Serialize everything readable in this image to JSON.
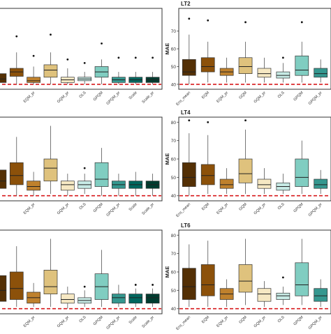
{
  "colors": {
    "Ens_mean": "#543005",
    "EQM": "#8c510a",
    "EQM_pr": "#bf812d",
    "GQM": "#dfc27d",
    "GQM_pr": "#f6e8c3",
    "OLS": "#c7eae5",
    "GPQM": "#80cdc1",
    "GPQM_pr": "#35978f",
    "Scale": "#01665e",
    "Scale_pr": "#003c30",
    "reference_line": "#d7191c",
    "panel_border": "#333333",
    "whisker": "#555555"
  },
  "chart_data": [
    {
      "type": "box",
      "title": "",
      "ylabel": "",
      "ylim": [
        38,
        82
      ],
      "y_ticks": [],
      "reference_line": 40,
      "categories": [
        "Ens_mean",
        "EQM",
        "EQM_pr",
        "GQM",
        "GQM_pr",
        "OLS",
        "GPQM",
        "GPQM_pr",
        "Scale",
        "Scale_pr"
      ],
      "tick_labels": [
        "",
        "",
        "EQM_pr",
        "",
        "GQM_pr",
        "OLS",
        "GPQM",
        "GPQM_pr",
        "Scale",
        "Scale_pr"
      ],
      "boxes": [
        {
          "category": "Ens_mean",
          "min": 40,
          "q1": 41,
          "median": 43,
          "q3": 46,
          "max": 52,
          "outliers": []
        },
        {
          "category": "EQM",
          "min": 40,
          "q1": 44.5,
          "median": 47,
          "q3": 49,
          "max": 58,
          "outliers": [
            67
          ]
        },
        {
          "category": "EQM_pr",
          "min": 40,
          "q1": 41,
          "median": 42,
          "q3": 44,
          "max": 50,
          "outliers": [
            56
          ]
        },
        {
          "category": "GQM",
          "min": 40,
          "q1": 44,
          "median": 48,
          "q3": 51,
          "max": 58,
          "outliers": [
            68
          ]
        },
        {
          "category": "GQM_pr",
          "min": 40,
          "q1": 41,
          "median": 42.5,
          "q3": 44,
          "max": 49,
          "outliers": [
            54
          ]
        },
        {
          "category": "OLS",
          "min": 40,
          "q1": 42,
          "median": 43,
          "q3": 44,
          "max": 47,
          "outliers": [
            52
          ]
        },
        {
          "category": "GPQM",
          "min": 40,
          "q1": 44,
          "median": 47,
          "q3": 50,
          "max": 54,
          "outliers": [
            63
          ]
        },
        {
          "category": "GPQM_pr",
          "min": 40,
          "q1": 41,
          "median": 42.5,
          "q3": 44,
          "max": 47,
          "outliers": [
            55
          ]
        },
        {
          "category": "Scale",
          "min": 40,
          "q1": 41,
          "median": 42.5,
          "q3": 44,
          "max": 47,
          "outliers": [
            55
          ]
        },
        {
          "category": "Scale_pr",
          "min": 40,
          "q1": 41,
          "median": 42.5,
          "q3": 44,
          "max": 47,
          "outliers": [
            55
          ]
        }
      ]
    },
    {
      "type": "box",
      "title": "LT2",
      "ylabel": "MAE",
      "ylim": [
        38,
        82
      ],
      "y_ticks": [
        40,
        50,
        60,
        70
      ],
      "reference_line": 40,
      "categories": [
        "Ens_mean",
        "EQM",
        "EQM_pr",
        "GQM",
        "GQM_pr",
        "OLS",
        "GPQM",
        "GPQM_pr"
      ],
      "tick_labels": [
        "Ens_mean",
        "EQM",
        "EQM_pr",
        "GQM",
        "GQM_pr",
        "OLS",
        "GPQM",
        "GPQM_pr"
      ],
      "boxes": [
        {
          "category": "Ens_mean",
          "min": 40,
          "q1": 45,
          "median": 47,
          "q3": 54,
          "max": 68,
          "outliers": [
            77
          ]
        },
        {
          "category": "EQM",
          "min": 41,
          "q1": 47,
          "median": 50,
          "q3": 55,
          "max": 64,
          "outliers": [
            76
          ]
        },
        {
          "category": "EQM_pr",
          "min": 41,
          "q1": 45,
          "median": 47,
          "q3": 49,
          "max": 55,
          "outliers": []
        },
        {
          "category": "GQM",
          "min": 41,
          "q1": 46,
          "median": 50,
          "q3": 55,
          "max": 64,
          "outliers": [
            75
          ]
        },
        {
          "category": "GQM_pr",
          "min": 41,
          "q1": 44,
          "median": 46,
          "q3": 49,
          "max": 55,
          "outliers": []
        },
        {
          "category": "OLS",
          "min": 41,
          "q1": 43.5,
          "median": 45,
          "q3": 47,
          "max": 52,
          "outliers": [
            55
          ]
        },
        {
          "category": "GPQM",
          "min": 41,
          "q1": 45,
          "median": 48,
          "q3": 56,
          "max": 64,
          "outliers": [
            75
          ]
        },
        {
          "category": "GPQM_pr",
          "min": 41,
          "q1": 44,
          "median": 46,
          "q3": 49,
          "max": 54,
          "outliers": []
        }
      ]
    },
    {
      "type": "box",
      "title": "",
      "ylabel": "",
      "ylim": [
        38,
        82
      ],
      "y_ticks": [],
      "reference_line": 40,
      "categories": [
        "Ens_mean",
        "EQM",
        "EQM_pr",
        "GQM",
        "GQM_pr",
        "OLS",
        "GPQM",
        "GPQM_pr",
        "Scale",
        "Scale_pr"
      ],
      "tick_labels": [
        "",
        "",
        "EQM_pr",
        "",
        "GQM_pr",
        "OLS",
        "GPQM",
        "GPQM_pr",
        "Scale",
        "Scale_pr"
      ],
      "boxes": [
        {
          "category": "Ens_mean",
          "min": 40,
          "q1": 44,
          "median": 48,
          "q3": 54,
          "max": 70,
          "outliers": []
        },
        {
          "category": "EQM",
          "min": 40,
          "q1": 46,
          "median": 51,
          "q3": 58,
          "max": 72,
          "outliers": []
        },
        {
          "category": "EQM_pr",
          "min": 40,
          "q1": 43,
          "median": 45,
          "q3": 48,
          "max": 53,
          "outliers": []
        },
        {
          "category": "GQM",
          "min": 41,
          "q1": 48,
          "median": 55,
          "q3": 60,
          "max": 78,
          "outliers": []
        },
        {
          "category": "GQM_pr",
          "min": 40,
          "q1": 43,
          "median": 46,
          "q3": 48,
          "max": 52,
          "outliers": []
        },
        {
          "category": "OLS",
          "min": 41,
          "q1": 44,
          "median": 46,
          "q3": 48,
          "max": 52,
          "outliers": [
            55
          ]
        },
        {
          "category": "GPQM",
          "min": 40,
          "q1": 45,
          "median": 49,
          "q3": 58,
          "max": 66,
          "outliers": []
        },
        {
          "category": "GPQM_pr",
          "min": 40,
          "q1": 44,
          "median": 46,
          "q3": 48,
          "max": 52,
          "outliers": []
        },
        {
          "category": "Scale",
          "min": 40,
          "q1": 44,
          "median": 46,
          "q3": 48,
          "max": 53,
          "outliers": []
        },
        {
          "category": "Scale_pr",
          "min": 40,
          "q1": 44,
          "median": 46,
          "q3": 48,
          "max": 52,
          "outliers": []
        }
      ]
    },
    {
      "type": "box",
      "title": "LT4",
      "ylabel": "MAE",
      "ylim": [
        38,
        82
      ],
      "y_ticks": [
        40,
        50,
        60,
        70,
        80
      ],
      "reference_line": 40,
      "categories": [
        "Ens_mean",
        "EQM",
        "EQM_pr",
        "GQM",
        "GQM_pr",
        "OLS",
        "GPQM",
        "GPQM_pr"
      ],
      "tick_labels": [
        "Ens_mean",
        "EQM",
        "EQM_pr",
        "GQM",
        "GQM_pr",
        "OLS",
        "GPQM",
        "GPQM_pr"
      ],
      "boxes": [
        {
          "category": "Ens_mean",
          "min": 40,
          "q1": 45,
          "median": 50,
          "q3": 58,
          "max": 74,
          "outliers": [
            81
          ]
        },
        {
          "category": "EQM",
          "min": 41,
          "q1": 46,
          "median": 51,
          "q3": 57,
          "max": 73,
          "outliers": [
            80
          ]
        },
        {
          "category": "EQM_pr",
          "min": 41,
          "q1": 44,
          "median": 46,
          "q3": 49,
          "max": 55,
          "outliers": []
        },
        {
          "category": "GQM",
          "min": 41,
          "q1": 47,
          "median": 52,
          "q3": 60,
          "max": 76,
          "outliers": [
            81
          ]
        },
        {
          "category": "GQM_pr",
          "min": 41,
          "q1": 44,
          "median": 46,
          "q3": 49,
          "max": 55,
          "outliers": []
        },
        {
          "category": "OLS",
          "min": 41,
          "q1": 43,
          "median": 45,
          "q3": 47,
          "max": 52,
          "outliers": []
        },
        {
          "category": "GPQM",
          "min": 41,
          "q1": 45,
          "median": 50,
          "q3": 60,
          "max": 70,
          "outliers": []
        },
        {
          "category": "GPQM_pr",
          "min": 41,
          "q1": 44,
          "median": 46,
          "q3": 49,
          "max": 54,
          "outliers": []
        }
      ]
    },
    {
      "type": "box",
      "title": "",
      "ylabel": "",
      "ylim": [
        38,
        82
      ],
      "y_ticks": [],
      "reference_line": 40,
      "categories": [
        "Ens_mean",
        "EQM",
        "EQM_pr",
        "GQM",
        "GQM_pr",
        "OLS",
        "GPQM",
        "GPQM_pr",
        "Scale",
        "Scale_pr"
      ],
      "tick_labels": [
        "",
        "",
        "EQM_pr",
        "",
        "GQM_pr",
        "OLS",
        "GPQM",
        "GPQM_pr",
        "Scale",
        "Scale_pr"
      ],
      "boxes": [
        {
          "category": "Ens_mean",
          "min": 40,
          "q1": 44,
          "median": 50,
          "q3": 58,
          "max": 72,
          "outliers": []
        },
        {
          "category": "EQM",
          "min": 41,
          "q1": 45,
          "median": 51,
          "q3": 60,
          "max": 74,
          "outliers": []
        },
        {
          "category": "EQM_pr",
          "min": 41,
          "q1": 43,
          "median": 46,
          "q3": 49,
          "max": 54,
          "outliers": []
        },
        {
          "category": "GQM",
          "min": 41,
          "q1": 48,
          "median": 52,
          "q3": 61,
          "max": 78,
          "outliers": []
        },
        {
          "category": "GQM_pr",
          "min": 40,
          "q1": 43,
          "median": 45,
          "q3": 48,
          "max": 52,
          "outliers": []
        },
        {
          "category": "OLS",
          "min": 41,
          "q1": 43,
          "median": 44.5,
          "q3": 46,
          "max": 50,
          "outliers": [
            52
          ]
        },
        {
          "category": "GPQM",
          "min": 41,
          "q1": 45,
          "median": 52,
          "q3": 59,
          "max": 72,
          "outliers": []
        },
        {
          "category": "GPQM_pr",
          "min": 41,
          "q1": 43,
          "median": 46,
          "q3": 48,
          "max": 53,
          "outliers": []
        },
        {
          "category": "Scale",
          "min": 41,
          "q1": 43,
          "median": 46,
          "q3": 48,
          "max": 51,
          "outliers": [
            53
          ]
        },
        {
          "category": "Scale_pr",
          "min": 41,
          "q1": 43,
          "median": 46,
          "q3": 48,
          "max": 51,
          "outliers": [
            53
          ]
        }
      ]
    },
    {
      "type": "box",
      "title": "LT6",
      "ylabel": "MAE",
      "ylim": [
        38,
        82
      ],
      "y_ticks": [
        40,
        50,
        60,
        70,
        80
      ],
      "reference_line": 40,
      "categories": [
        "Ens_mean",
        "EQM",
        "EQM_pr",
        "GQM",
        "GQM_pr",
        "OLS",
        "GPQM",
        "GPQM_pr"
      ],
      "tick_labels": [
        "Ens_mean",
        "EQM",
        "EQM_pr",
        "GQM",
        "GQM_pr",
        "OLS",
        "GPQM",
        "GPQM_pr"
      ],
      "boxes": [
        {
          "category": "Ens_mean",
          "min": 41,
          "q1": 45,
          "median": 52,
          "q3": 62,
          "max": 75,
          "outliers": []
        },
        {
          "category": "EQM",
          "min": 41,
          "q1": 47,
          "median": 53,
          "q3": 64,
          "max": 77,
          "outliers": []
        },
        {
          "category": "EQM_pr",
          "min": 41,
          "q1": 45,
          "median": 48,
          "q3": 51,
          "max": 56,
          "outliers": []
        },
        {
          "category": "GQM",
          "min": 42,
          "q1": 49,
          "median": 55,
          "q3": 64,
          "max": 78,
          "outliers": []
        },
        {
          "category": "GQM_pr",
          "min": 41,
          "q1": 44,
          "median": 48,
          "q3": 51,
          "max": 55,
          "outliers": []
        },
        {
          "category": "OLS",
          "min": 42,
          "q1": 45,
          "median": 47,
          "q3": 48.5,
          "max": 52,
          "outliers": [
            57
          ]
        },
        {
          "category": "GPQM",
          "min": 42,
          "q1": 47,
          "median": 53,
          "q3": 65,
          "max": 78,
          "outliers": []
        },
        {
          "category": "GPQM_pr",
          "min": 41,
          "q1": 44,
          "median": 47,
          "q3": 51,
          "max": 56,
          "outliers": []
        }
      ]
    }
  ]
}
